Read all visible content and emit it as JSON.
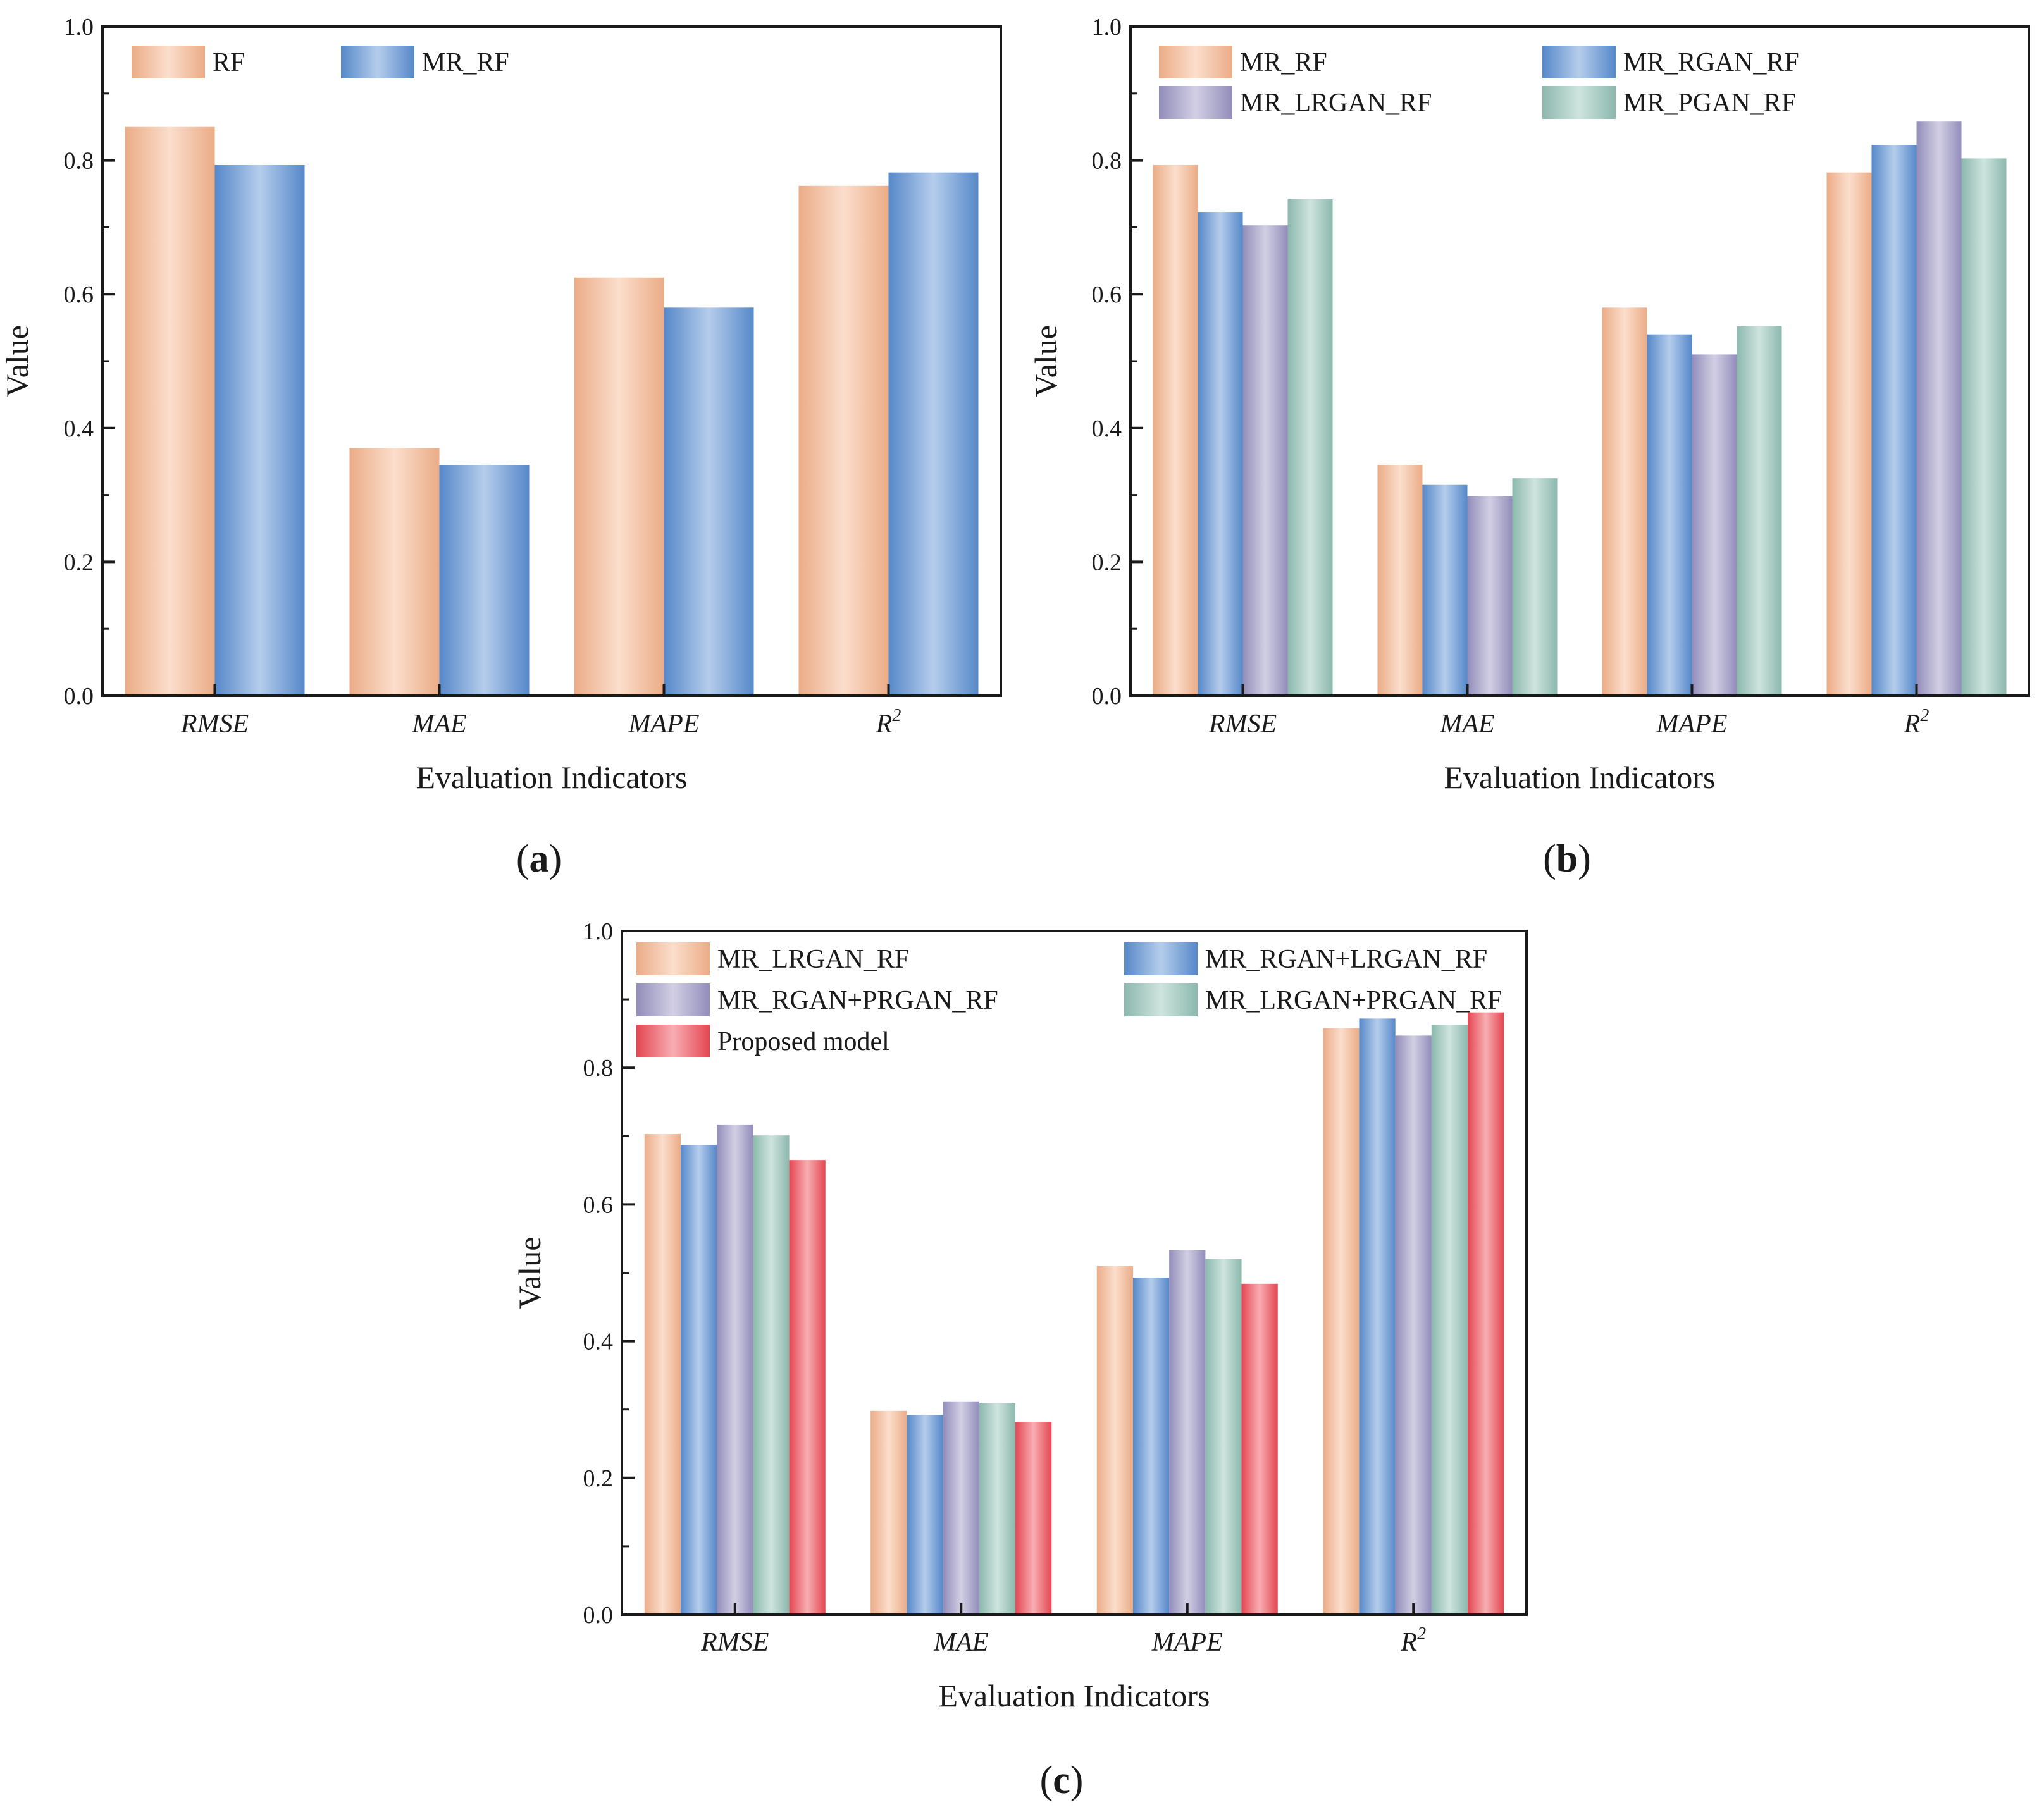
{
  "colors": {
    "orange": "#f7b58e",
    "blue": "#5b8fd4",
    "purple": "#9a94c4",
    "teal": "#93c2b6",
    "red": "#f04a55"
  },
  "panel_labels": [
    "a",
    "b",
    "c"
  ],
  "chart_data": [
    {
      "type": "bar",
      "id": "a",
      "xlabel": "Evaluation Indicators",
      "ylabel": "Value",
      "ylim": [
        0,
        1.0
      ],
      "yticks": [
        "0.0",
        "0.2",
        "0.4",
        "0.6",
        "0.8",
        "1.0"
      ],
      "categories": [
        "RMSE",
        "MAE",
        "MAPE",
        "R"
      ],
      "category_superscript": [
        "",
        "",
        "",
        "2"
      ],
      "legend_columns": 2,
      "series": [
        {
          "name": "RF",
          "color": "orange",
          "values": [
            0.85,
            0.37,
            0.625,
            0.762
          ]
        },
        {
          "name": "MR_RF",
          "color": "blue",
          "values": [
            0.793,
            0.345,
            0.58,
            0.782
          ]
        }
      ]
    },
    {
      "type": "bar",
      "id": "b",
      "xlabel": "Evaluation Indicators",
      "ylabel": "Value",
      "ylim": [
        0,
        1.0
      ],
      "yticks": [
        "0.0",
        "0.2",
        "0.4",
        "0.6",
        "0.8",
        "1.0"
      ],
      "categories": [
        "RMSE",
        "MAE",
        "MAPE",
        "R"
      ],
      "category_superscript": [
        "",
        "",
        "",
        "2"
      ],
      "legend_columns": 2,
      "series": [
        {
          "name": "MR_RF",
          "color": "orange",
          "values": [
            0.793,
            0.345,
            0.58,
            0.782
          ]
        },
        {
          "name": "MR_RGAN_RF",
          "color": "blue",
          "values": [
            0.723,
            0.315,
            0.54,
            0.823
          ]
        },
        {
          "name": "MR_LRGAN_RF",
          "color": "purple",
          "values": [
            0.703,
            0.298,
            0.51,
            0.858
          ]
        },
        {
          "name": "MR_PGAN_RF",
          "color": "teal",
          "values": [
            0.742,
            0.325,
            0.552,
            0.803
          ]
        }
      ]
    },
    {
      "type": "bar",
      "id": "c",
      "xlabel": "Evaluation Indicators",
      "ylabel": "Value",
      "ylim": [
        0,
        1.0
      ],
      "yticks": [
        "0.0",
        "0.2",
        "0.4",
        "0.6",
        "0.8",
        "1.0"
      ],
      "categories": [
        "RMSE",
        "MAE",
        "MAPE",
        "R"
      ],
      "category_superscript": [
        "",
        "",
        "",
        "2"
      ],
      "legend_columns": 2,
      "series": [
        {
          "name": "MR_LRGAN_RF",
          "color": "orange",
          "values": [
            0.703,
            0.298,
            0.51,
            0.858
          ]
        },
        {
          "name": "MR_RGAN+LRGAN_RF",
          "color": "blue",
          "values": [
            0.687,
            0.292,
            0.493,
            0.872
          ]
        },
        {
          "name": "MR_RGAN+PRGAN_RF",
          "color": "purple",
          "values": [
            0.717,
            0.312,
            0.533,
            0.847
          ]
        },
        {
          "name": "MR_LRGAN+PRGAN_RF",
          "color": "teal",
          "values": [
            0.701,
            0.309,
            0.52,
            0.863
          ]
        },
        {
          "name": "Proposed model",
          "color": "red",
          "values": [
            0.665,
            0.282,
            0.484,
            0.881
          ]
        }
      ]
    }
  ]
}
